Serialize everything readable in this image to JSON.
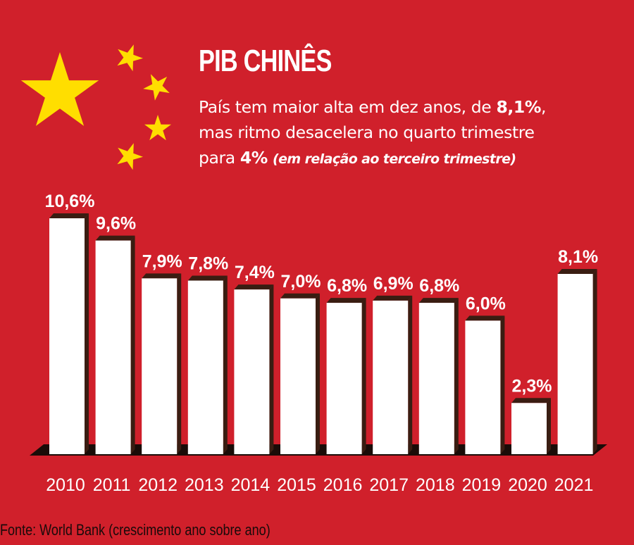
{
  "header": {
    "title": "PIB CHINÊS",
    "subtitle_line1_pre": "País tem maior alta em dez anos, de ",
    "subtitle_line1_bold": "8,1%",
    "subtitle_line1_post": ",",
    "subtitle_line2": "mas ritmo desacelera no quarto trimestre",
    "subtitle_line3_pre": "para ",
    "subtitle_line3_bold": "4%",
    "subtitle_line3_note": "(em relação ao terceiro trimestre)"
  },
  "source": "Fonte: World Bank (crescimento ano sobre ano)",
  "colors": {
    "background": "#d0202b",
    "bar": "#ffffff",
    "bar_side": "#3a1d12",
    "stars": "#ffde00"
  },
  "chart_data": {
    "type": "bar",
    "categories": [
      "2010",
      "2011",
      "2012",
      "2013",
      "2014",
      "2015",
      "2016",
      "2017",
      "2018",
      "2019",
      "2020",
      "2021"
    ],
    "values": [
      10.6,
      9.6,
      7.9,
      7.8,
      7.4,
      7.0,
      6.8,
      6.9,
      6.8,
      6.0,
      2.3,
      8.1
    ],
    "data_labels": [
      "10,6%",
      "9,6%",
      "7,9%",
      "7,8%",
      "7,4%",
      "7,0%",
      "6,8%",
      "6,9%",
      "6,8%",
      "6,0%",
      "2,3%",
      "8,1%"
    ],
    "title": "PIB CHINÊS",
    "xlabel": "",
    "ylabel": "",
    "ylim": [
      0,
      10.6
    ],
    "grid": false
  }
}
